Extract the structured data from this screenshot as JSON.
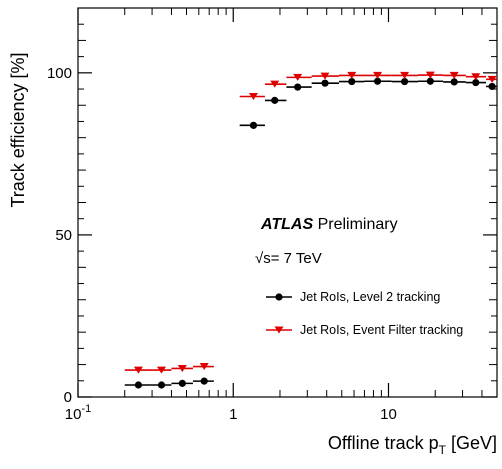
{
  "chart_data": {
    "type": "scatter",
    "xscale": "log",
    "xlim": [
      0.1,
      50
    ],
    "ylim": [
      0,
      120
    ],
    "xlabel_main": "Offline track p",
    "xlabel_sub": "T",
    "xlabel_unit": " [GeV]",
    "ylabel": "Track efficiency [%]",
    "x_ticks": [
      {
        "value": 0.1,
        "base": "10",
        "exp": "-1"
      },
      {
        "value": 1,
        "label": "1"
      },
      {
        "value": 10,
        "label": "10"
      }
    ],
    "y_ticks": [
      {
        "value": 0,
        "label": "0"
      },
      {
        "value": 50,
        "label": "50"
      },
      {
        "value": 100,
        "label": "100"
      }
    ],
    "annotation": {
      "experiment": "ATLAS",
      "status": " Preliminary",
      "energy_sqrt": "√s",
      "energy_value": "= 7 TeV"
    },
    "series": [
      {
        "name": "Jet RoIs, Level 2 tracking",
        "color": "#000000",
        "marker": "circle",
        "points": [
          {
            "x": 0.245,
            "y": 3.7,
            "xlo": 0.2,
            "xhi": 0.3
          },
          {
            "x": 0.345,
            "y": 3.7,
            "xlo": 0.3,
            "xhi": 0.4
          },
          {
            "x": 0.47,
            "y": 4.2,
            "xlo": 0.4,
            "xhi": 0.55
          },
          {
            "x": 0.65,
            "y": 4.9,
            "xlo": 0.55,
            "xhi": 0.75
          },
          {
            "x": 1.35,
            "y": 83.8,
            "xlo": 1.1,
            "xhi": 1.6
          },
          {
            "x": 1.85,
            "y": 91.5,
            "xlo": 1.6,
            "xhi": 2.2
          },
          {
            "x": 2.6,
            "y": 95.6,
            "xlo": 2.2,
            "xhi": 3.2
          },
          {
            "x": 3.9,
            "y": 96.8,
            "xlo": 3.2,
            "xhi": 4.8
          },
          {
            "x": 5.8,
            "y": 97.3,
            "xlo": 4.8,
            "xhi": 7.0
          },
          {
            "x": 8.5,
            "y": 97.4,
            "xlo": 7.0,
            "xhi": 10.5
          },
          {
            "x": 12.7,
            "y": 97.3,
            "xlo": 10.5,
            "xhi": 15.5
          },
          {
            "x": 18.6,
            "y": 97.4,
            "xlo": 15.5,
            "xhi": 22.5
          },
          {
            "x": 26.5,
            "y": 97.2,
            "xlo": 22.5,
            "xhi": 31.5
          },
          {
            "x": 36.5,
            "y": 97.0,
            "xlo": 31.5,
            "xhi": 42.5
          },
          {
            "x": 46.5,
            "y": 95.8,
            "xlo": 42.5,
            "xhi": 50.0
          }
        ]
      },
      {
        "name": "Jet RoIs, Event Filter tracking",
        "color": "#dd0000",
        "marker": "triangle-down",
        "points": [
          {
            "x": 0.245,
            "y": 8.3,
            "xlo": 0.2,
            "xhi": 0.3
          },
          {
            "x": 0.345,
            "y": 8.3,
            "xlo": 0.3,
            "xhi": 0.4
          },
          {
            "x": 0.47,
            "y": 8.8,
            "xlo": 0.4,
            "xhi": 0.55
          },
          {
            "x": 0.65,
            "y": 9.4,
            "xlo": 0.55,
            "xhi": 0.75
          },
          {
            "x": 1.35,
            "y": 92.7,
            "xlo": 1.1,
            "xhi": 1.6
          },
          {
            "x": 1.85,
            "y": 96.5,
            "xlo": 1.6,
            "xhi": 2.2
          },
          {
            "x": 2.6,
            "y": 98.6,
            "xlo": 2.2,
            "xhi": 3.2
          },
          {
            "x": 3.9,
            "y": 99.0,
            "xlo": 3.2,
            "xhi": 4.8
          },
          {
            "x": 5.8,
            "y": 99.2,
            "xlo": 4.8,
            "xhi": 7.0
          },
          {
            "x": 8.5,
            "y": 99.2,
            "xlo": 7.0,
            "xhi": 10.5
          },
          {
            "x": 12.7,
            "y": 99.2,
            "xlo": 10.5,
            "xhi": 15.5
          },
          {
            "x": 18.6,
            "y": 99.3,
            "xlo": 15.5,
            "xhi": 22.5
          },
          {
            "x": 26.5,
            "y": 99.2,
            "xlo": 22.5,
            "xhi": 31.5
          },
          {
            "x": 36.5,
            "y": 98.8,
            "xlo": 31.5,
            "xhi": 42.5
          },
          {
            "x": 46.5,
            "y": 98.0,
            "xlo": 42.5,
            "xhi": 50.0
          }
        ]
      }
    ]
  }
}
